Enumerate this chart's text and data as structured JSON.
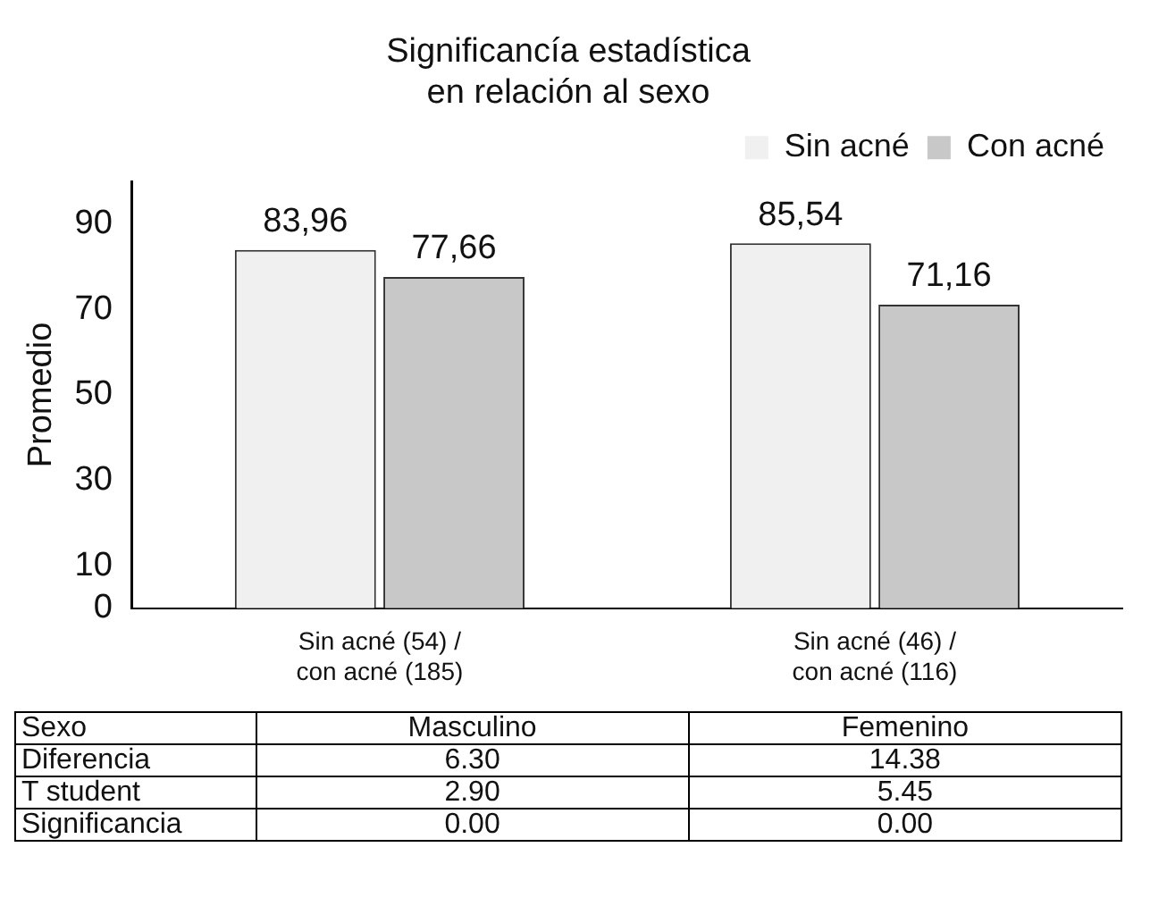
{
  "chart_data": {
    "type": "bar",
    "title": "Significancía estadística\nen relación al sexo",
    "ylabel": "Promedio",
    "categories": [
      "Sin acné (54) /\ncon acné (185)",
      "Sin acné (46) /\ncon acné (116)"
    ],
    "series": [
      {
        "name": "Sin acné",
        "color": "#f0f0f0",
        "values": [
          83.96,
          85.54
        ],
        "value_labels": [
          "83,96",
          "85,54"
        ]
      },
      {
        "name": "Con acné",
        "color": "#c8c8c8",
        "values": [
          77.66,
          71.16
        ],
        "value_labels": [
          "77,66",
          "71,16"
        ]
      }
    ],
    "ylim": [
      0,
      100
    ],
    "yticks": [
      0,
      10,
      30,
      50,
      70,
      90
    ],
    "grid": false,
    "legend": "top right",
    "annotations": [
      "Sexo",
      "Masculino",
      "Femenino",
      "Diferencia",
      "6.30",
      "14.38",
      "T student",
      "2.90",
      "5.45",
      "Significancia",
      "0.00",
      "0.00"
    ]
  }
}
